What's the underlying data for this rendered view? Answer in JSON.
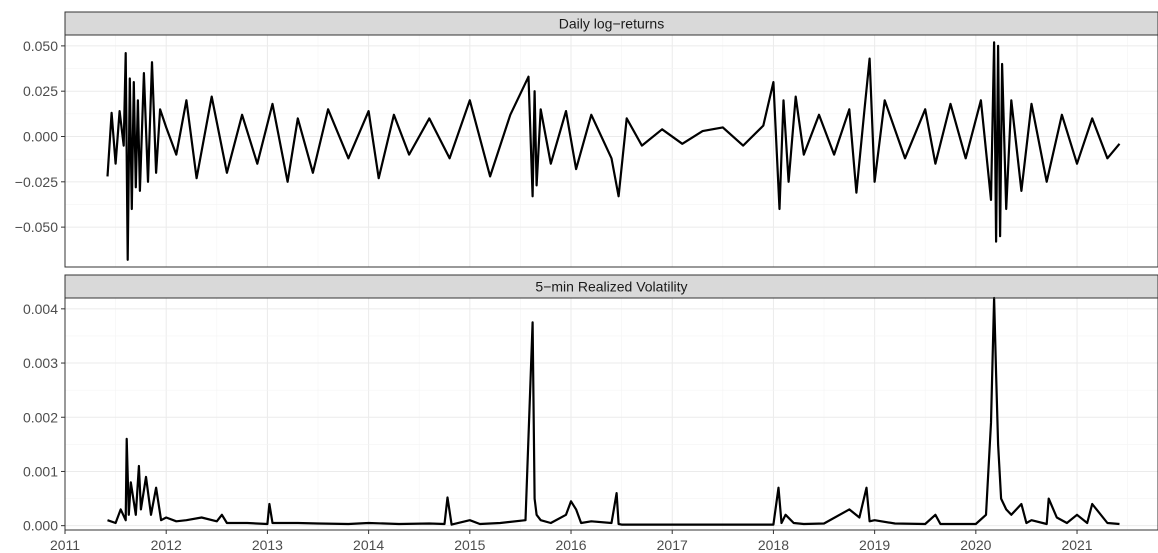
{
  "chart_data": [
    {
      "type": "line",
      "title": "Daily log−returns",
      "xlabel": "",
      "ylabel": "",
      "xlim": [
        2011.0,
        2021.8
      ],
      "ylim": [
        -0.072,
        0.056
      ],
      "x_ticks": [
        "2011",
        "2012",
        "2013",
        "2014",
        "2015",
        "2016",
        "2017",
        "2018",
        "2019",
        "2020",
        "2021"
      ],
      "y_ticks": [
        "0.050",
        "0.025",
        "0.000",
        "−0.025",
        "−0.050"
      ],
      "y_tick_values": [
        0.05,
        0.025,
        0.0,
        -0.025,
        -0.05
      ],
      "grid": true,
      "series": [
        {
          "x": [
            2011.42,
            2011.46,
            2011.5,
            2011.54,
            2011.58,
            2011.6,
            2011.62,
            2011.64,
            2011.66,
            2011.68,
            2011.7,
            2011.72,
            2011.74,
            2011.78,
            2011.82,
            2011.86,
            2011.9,
            2011.94,
            2012.0,
            2012.1,
            2012.2,
            2012.3,
            2012.45,
            2012.6,
            2012.75,
            2012.9,
            2013.05,
            2013.2,
            2013.3,
            2013.45,
            2013.6,
            2013.8,
            2014.0,
            2014.1,
            2014.25,
            2014.4,
            2014.6,
            2014.8,
            2015.0,
            2015.2,
            2015.4,
            2015.58,
            2015.62,
            2015.64,
            2015.66,
            2015.7,
            2015.8,
            2015.95,
            2016.05,
            2016.2,
            2016.4,
            2016.47,
            2016.55,
            2016.7,
            2016.9,
            2017.1,
            2017.3,
            2017.5,
            2017.7,
            2017.9,
            2018.0,
            2018.06,
            2018.1,
            2018.15,
            2018.22,
            2018.3,
            2018.45,
            2018.6,
            2018.75,
            2018.82,
            2018.9,
            2018.95,
            2019.0,
            2019.1,
            2019.3,
            2019.5,
            2019.6,
            2019.75,
            2019.9,
            2020.05,
            2020.15,
            2020.18,
            2020.2,
            2020.22,
            2020.24,
            2020.26,
            2020.3,
            2020.35,
            2020.45,
            2020.55,
            2020.7,
            2020.85,
            2021.0,
            2021.15,
            2021.3,
            2021.42
          ],
          "y": [
            -0.022,
            0.013,
            -0.015,
            0.014,
            -0.005,
            0.046,
            -0.068,
            0.032,
            -0.04,
            0.03,
            -0.028,
            0.02,
            -0.03,
            0.035,
            -0.025,
            0.041,
            -0.02,
            0.015,
            0.005,
            -0.01,
            0.02,
            -0.023,
            0.022,
            -0.02,
            0.012,
            -0.015,
            0.018,
            -0.025,
            0.01,
            -0.02,
            0.015,
            -0.012,
            0.014,
            -0.023,
            0.012,
            -0.01,
            0.01,
            -0.012,
            0.02,
            -0.022,
            0.012,
            0.033,
            -0.033,
            0.025,
            -0.027,
            0.015,
            -0.015,
            0.014,
            -0.018,
            0.012,
            -0.012,
            -0.033,
            0.01,
            -0.005,
            0.004,
            -0.004,
            0.003,
            0.005,
            -0.005,
            0.006,
            0.03,
            -0.04,
            0.02,
            -0.025,
            0.022,
            -0.01,
            0.012,
            -0.01,
            0.015,
            -0.031,
            0.015,
            0.043,
            -0.025,
            0.02,
            -0.012,
            0.015,
            -0.015,
            0.018,
            -0.012,
            0.02,
            -0.035,
            0.052,
            -0.058,
            0.05,
            -0.055,
            0.04,
            -0.04,
            0.02,
            -0.03,
            0.018,
            -0.025,
            0.012,
            -0.015,
            0.01,
            -0.012,
            -0.004
          ]
        }
      ]
    },
    {
      "type": "line",
      "title": "5−min Realized Volatility",
      "xlabel": "",
      "ylabel": "",
      "xlim": [
        2011.0,
        2021.8
      ],
      "ylim": [
        -8e-05,
        0.0042
      ],
      "x_ticks": [
        "2011",
        "2012",
        "2013",
        "2014",
        "2015",
        "2016",
        "2017",
        "2018",
        "2019",
        "2020",
        "2021"
      ],
      "y_ticks": [
        "0.004",
        "0.003",
        "0.002",
        "0.001",
        "0.000"
      ],
      "y_tick_values": [
        0.004,
        0.003,
        0.002,
        0.001,
        0.0
      ],
      "grid": true,
      "series": [
        {
          "x": [
            2011.42,
            2011.5,
            2011.55,
            2011.6,
            2011.61,
            2011.63,
            2011.65,
            2011.7,
            2011.73,
            2011.75,
            2011.8,
            2011.85,
            2011.9,
            2011.95,
            2012.0,
            2012.1,
            2012.2,
            2012.35,
            2012.5,
            2012.55,
            2012.6,
            2012.8,
            2013.0,
            2013.02,
            2013.05,
            2013.3,
            2013.5,
            2013.8,
            2014.0,
            2014.3,
            2014.6,
            2014.75,
            2014.78,
            2014.82,
            2015.0,
            2015.1,
            2015.3,
            2015.55,
            2015.62,
            2015.64,
            2015.66,
            2015.7,
            2015.8,
            2015.95,
            2016.0,
            2016.05,
            2016.1,
            2016.2,
            2016.4,
            2016.45,
            2016.47,
            2016.5,
            2016.7,
            2017.0,
            2017.5,
            2017.9,
            2018.0,
            2018.05,
            2018.08,
            2018.12,
            2018.2,
            2018.3,
            2018.5,
            2018.75,
            2018.85,
            2018.92,
            2018.95,
            2019.0,
            2019.2,
            2019.5,
            2019.6,
            2019.65,
            2019.8,
            2020.0,
            2020.1,
            2020.15,
            2020.18,
            2020.2,
            2020.22,
            2020.25,
            2020.3,
            2020.35,
            2020.45,
            2020.5,
            2020.55,
            2020.7,
            2020.72,
            2020.8,
            2020.9,
            2021.0,
            2021.1,
            2021.15,
            2021.3,
            2021.42
          ],
          "y": [
            0.0001,
            5e-05,
            0.0003,
            0.0001,
            0.0016,
            0.0002,
            0.0008,
            0.0002,
            0.0011,
            0.0003,
            0.0009,
            0.0002,
            0.0007,
            0.0001,
            0.00015,
            8e-05,
            0.0001,
            0.00015,
            8e-05,
            0.0002,
            5e-05,
            5e-05,
            3e-05,
            0.0004,
            5e-05,
            5e-05,
            4e-05,
            3e-05,
            5e-05,
            3e-05,
            4e-05,
            3e-05,
            0.00052,
            2e-05,
            0.0001,
            3e-05,
            5e-05,
            0.0001,
            0.00375,
            0.0005,
            0.0002,
            0.0001,
            5e-05,
            0.0002,
            0.00045,
            0.0003,
            5e-05,
            8e-05,
            5e-05,
            0.0006,
            3e-05,
            2e-05,
            2e-05,
            2e-05,
            2e-05,
            2e-05,
            2e-05,
            0.0007,
            5e-05,
            0.0002,
            5e-05,
            3e-05,
            4e-05,
            0.0003,
            0.00015,
            0.0007,
            8e-05,
            0.0001,
            4e-05,
            3e-05,
            0.0002,
            3e-05,
            3e-05,
            3e-05,
            0.0002,
            0.0019,
            0.0042,
            0.0028,
            0.0015,
            0.0005,
            0.0003,
            0.0002,
            0.0004,
            5e-05,
            0.0001,
            3e-05,
            0.0005,
            0.00015,
            5e-05,
            0.0002,
            5e-05,
            0.0004,
            5e-05,
            3e-05
          ]
        }
      ]
    }
  ]
}
